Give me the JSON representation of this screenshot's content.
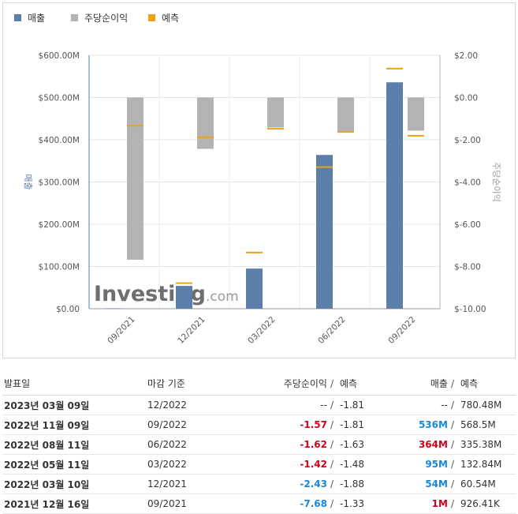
{
  "legend": {
    "revenue": "매출",
    "eps": "주당순이익",
    "forecast": "예측"
  },
  "colors": {
    "revenue": "#5b7fa8",
    "eps": "#b3b3b3",
    "forecast": "#e8a317",
    "neg": "#d0021b",
    "pos": "#1a86d6"
  },
  "watermark": {
    "brand": "Investing",
    "suffix": ".com"
  },
  "chart_data": {
    "type": "bar",
    "categories": [
      "09/2021",
      "12/2021",
      "03/2022",
      "06/2022",
      "09/2022"
    ],
    "y_left": {
      "label": "매출",
      "ticks": [
        "$600.00M",
        "$500.00M",
        "$400.00M",
        "$300.00M",
        "$200.00M",
        "$100.00M",
        "$0.00"
      ],
      "range": [
        0,
        600
      ]
    },
    "y_right": {
      "label": "주당순이익",
      "ticks": [
        "$2.00",
        "$0.00",
        "$-2.00",
        "$-4.00",
        "$-6.00",
        "$-8.00",
        "$-10.00"
      ],
      "range": [
        -10,
        2
      ]
    },
    "series": [
      {
        "name": "매출",
        "axis": "left",
        "values": [
          1,
          54,
          95,
          364,
          536
        ]
      },
      {
        "name": "매출 예측",
        "axis": "left",
        "values": [
          null,
          60.54,
          132.84,
          335.38,
          568.5
        ]
      },
      {
        "name": "주당순이익",
        "axis": "right",
        "values": [
          -7.68,
          -2.43,
          -1.42,
          -1.62,
          -1.57
        ]
      },
      {
        "name": "주당순이익 예측",
        "axis": "right",
        "values": [
          -1.33,
          -1.88,
          -1.48,
          -1.63,
          -1.81
        ]
      }
    ]
  },
  "table": {
    "headers": {
      "date": "발표일",
      "period": "마감 기준",
      "eps": "주당순이익",
      "eps_forecast": "예측",
      "revenue": "매출",
      "revenue_forecast": "예측",
      "slash": "/"
    },
    "rows": [
      {
        "date": "2023년 03월 09일",
        "period": "12/2022",
        "eps": "--",
        "eps_class": "",
        "eps_forecast": "-1.81",
        "revenue": "--",
        "revenue_class": "",
        "revenue_forecast": "780.48M"
      },
      {
        "date": "2022년 11월 09일",
        "period": "09/2022",
        "eps": "-1.57",
        "eps_class": "neg",
        "eps_forecast": "-1.81",
        "revenue": "536M",
        "revenue_class": "pos",
        "revenue_forecast": "568.5M"
      },
      {
        "date": "2022년 08월 11일",
        "period": "06/2022",
        "eps": "-1.62",
        "eps_class": "neg",
        "eps_forecast": "-1.63",
        "revenue": "364M",
        "revenue_class": "neg",
        "revenue_forecast": "335.38M"
      },
      {
        "date": "2022년 05월 11일",
        "period": "03/2022",
        "eps": "-1.42",
        "eps_class": "neg",
        "eps_forecast": "-1.48",
        "revenue": "95M",
        "revenue_class": "pos",
        "revenue_forecast": "132.84M"
      },
      {
        "date": "2022년 03월 10일",
        "period": "12/2021",
        "eps": "-2.43",
        "eps_class": "pos",
        "eps_forecast": "-1.88",
        "revenue": "54M",
        "revenue_class": "pos",
        "revenue_forecast": "60.54M"
      },
      {
        "date": "2021년 12월 16일",
        "period": "09/2021",
        "eps": "-7.68",
        "eps_class": "pos",
        "eps_forecast": "-1.33",
        "revenue": "1M",
        "revenue_class": "neg",
        "revenue_forecast": "926.41K"
      }
    ]
  }
}
